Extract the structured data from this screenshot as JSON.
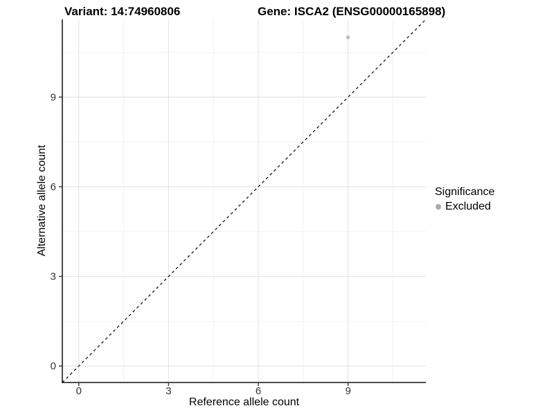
{
  "title": {
    "variant": "Variant: 14:74960806",
    "gene": "Gene: ISCA2 (ENSG00000165898)"
  },
  "chart_data": {
    "type": "scatter",
    "title_left": "Variant: 14:74960806",
    "title_right": "Gene: ISCA2 (ENSG00000165898)",
    "xlabel": "Reference allele count",
    "ylabel": "Alternative allele count",
    "xlim": [
      -0.55,
      11.6
    ],
    "ylim": [
      -0.55,
      11.6
    ],
    "xticks": [
      0,
      3,
      6,
      9
    ],
    "yticks": [
      0,
      3,
      6,
      9
    ],
    "minor_gridlines": [
      1.5,
      4.5,
      7.5,
      10.5
    ],
    "grid": "major and minor, light gray on white",
    "series": [
      {
        "name": "Excluded",
        "points": [
          {
            "x": 9,
            "y": 11
          }
        ],
        "color": "#bdbdbd"
      }
    ],
    "reference_line": {
      "slope": 1,
      "intercept": 0,
      "style": "dashed",
      "color": "#000000"
    },
    "legend": {
      "title": "Significance",
      "position": "right",
      "items": [
        {
          "label": "Excluded",
          "color": "#aaaaaa"
        }
      ]
    },
    "colors": {
      "background": "#ffffff",
      "axis_line": "#333333",
      "tick_mark": "#333333",
      "tick_label": "#333333",
      "major_grid": "#e6e6e6",
      "minor_grid": "#f1f1f1"
    }
  }
}
